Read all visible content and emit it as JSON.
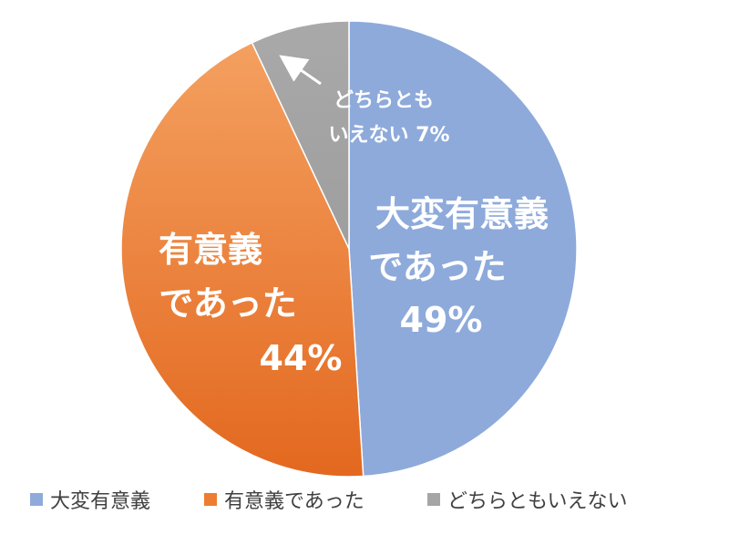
{
  "chart_data": {
    "type": "pie",
    "title": "",
    "slices": [
      {
        "legend": "大変有意義",
        "label_lines": [
          "大変有意義",
          "であった",
          "49%"
        ],
        "value": 49,
        "color": "#8eaadb"
      },
      {
        "legend": "有意義であった",
        "label_lines": [
          "有意義",
          "であった",
          "44%"
        ],
        "value": 44,
        "color": "#ed7d31"
      },
      {
        "legend": "どちらともいえない",
        "label_lines": [
          "どちらとも",
          "いえない 7%"
        ],
        "value": 7,
        "color": "#a5a5a5"
      }
    ],
    "legend_position": "bottom"
  }
}
